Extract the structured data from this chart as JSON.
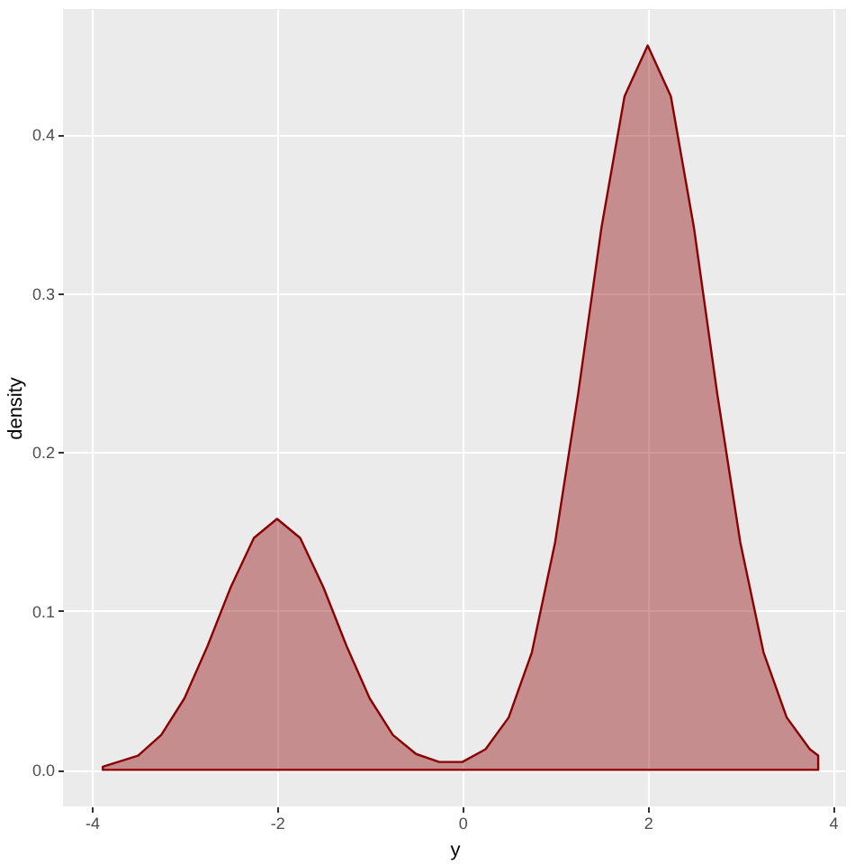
{
  "chart_data": {
    "type": "area",
    "xlabel": "y",
    "ylabel": "density",
    "x": [
      -3.88,
      -3.5,
      -3.25,
      -3,
      -2.75,
      -2.5,
      -2.25,
      -2,
      -1.75,
      -1.5,
      -1.25,
      -1,
      -0.75,
      -0.5,
      -0.25,
      0,
      0.25,
      0.5,
      0.75,
      1,
      1.25,
      1.5,
      1.75,
      2,
      2.25,
      2.5,
      2.75,
      3,
      3.25,
      3.5,
      3.75,
      3.84
    ],
    "series": [
      {
        "color": "#8b0000",
        "values": [
          0.002,
          0.009,
          0.022,
          0.045,
          0.078,
          0.115,
          0.146,
          0.158,
          0.146,
          0.115,
          0.078,
          0.045,
          0.022,
          0.01,
          0.005,
          0.005,
          0.013,
          0.033,
          0.074,
          0.143,
          0.237,
          0.341,
          0.424,
          0.456,
          0.424,
          0.341,
          0.237,
          0.143,
          0.074,
          0.033,
          0.013,
          0.009
        ]
      }
    ],
    "xlim": [
      -4.31,
      4.14
    ],
    "xticks": [
      -4,
      -2,
      0,
      2,
      4
    ],
    "ylim": [
      -0.023,
      0.479
    ],
    "yticks": [
      {
        "value": 0,
        "label": "0.0"
      },
      {
        "value": 0.1,
        "label": "0.1"
      },
      {
        "value": 0.2,
        "label": "0.2"
      },
      {
        "value": 0.3,
        "label": "0.3"
      },
      {
        "value": 0.4,
        "label": "0.4"
      }
    ],
    "grid": true
  }
}
